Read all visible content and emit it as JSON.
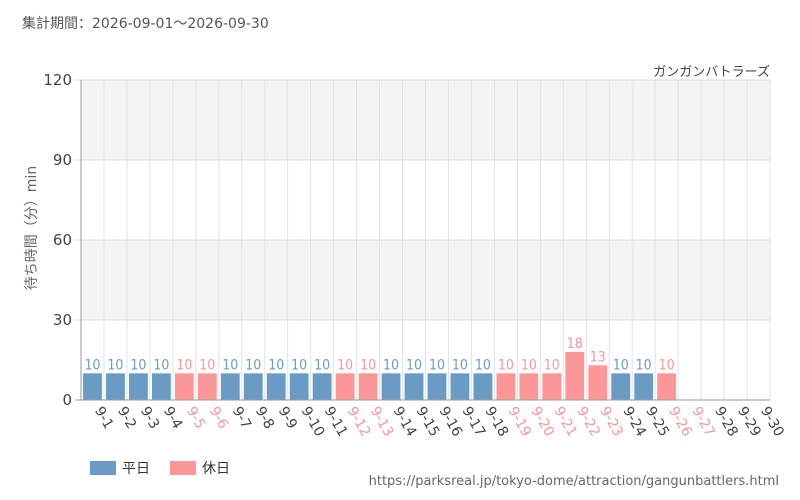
{
  "header": {
    "period": "集計期間：2026-09-01～2026-09-30",
    "attraction": "ガンガンバトラーズ"
  },
  "legend": {
    "weekday": "平日",
    "holiday": "休日"
  },
  "footer": {
    "source": "https://parksreal.jp/tokyo-dome/attraction/gangunbattlers.html"
  },
  "colors": {
    "weekday": "#6a9bc4",
    "holiday": "#fb9797",
    "axis_text": "#444444",
    "band": "#f4f4f4"
  },
  "chart_data": {
    "type": "bar",
    "ylabel": "待ち時間（分）min",
    "ylim": [
      0,
      120
    ],
    "yticks": [
      0,
      30,
      60,
      90,
      120
    ],
    "grid": true,
    "legend_position": "bottom-left",
    "categories": [
      "9-1",
      "9-2",
      "9-3",
      "9-4",
      "9-5",
      "9-6",
      "9-7",
      "9-8",
      "9-9",
      "9-10",
      "9-11",
      "9-12",
      "9-13",
      "9-14",
      "9-15",
      "9-16",
      "9-17",
      "9-18",
      "9-19",
      "9-20",
      "9-21",
      "9-22",
      "9-23",
      "9-24",
      "9-25",
      "9-26",
      "9-27",
      "9-28",
      "9-29",
      "9-30"
    ],
    "values": [
      10,
      10,
      10,
      10,
      10,
      10,
      10,
      10,
      10,
      10,
      10,
      10,
      10,
      10,
      10,
      10,
      10,
      10,
      10,
      10,
      10,
      18,
      13,
      10,
      10,
      10,
      null,
      null,
      null,
      null
    ],
    "day_type": [
      "weekday",
      "weekday",
      "weekday",
      "weekday",
      "holiday",
      "holiday",
      "weekday",
      "weekday",
      "weekday",
      "weekday",
      "weekday",
      "holiday",
      "holiday",
      "weekday",
      "weekday",
      "weekday",
      "weekday",
      "weekday",
      "holiday",
      "holiday",
      "holiday",
      "holiday",
      "holiday",
      "weekday",
      "weekday",
      "holiday",
      "holiday",
      "weekday",
      "weekday",
      "weekday"
    ]
  }
}
